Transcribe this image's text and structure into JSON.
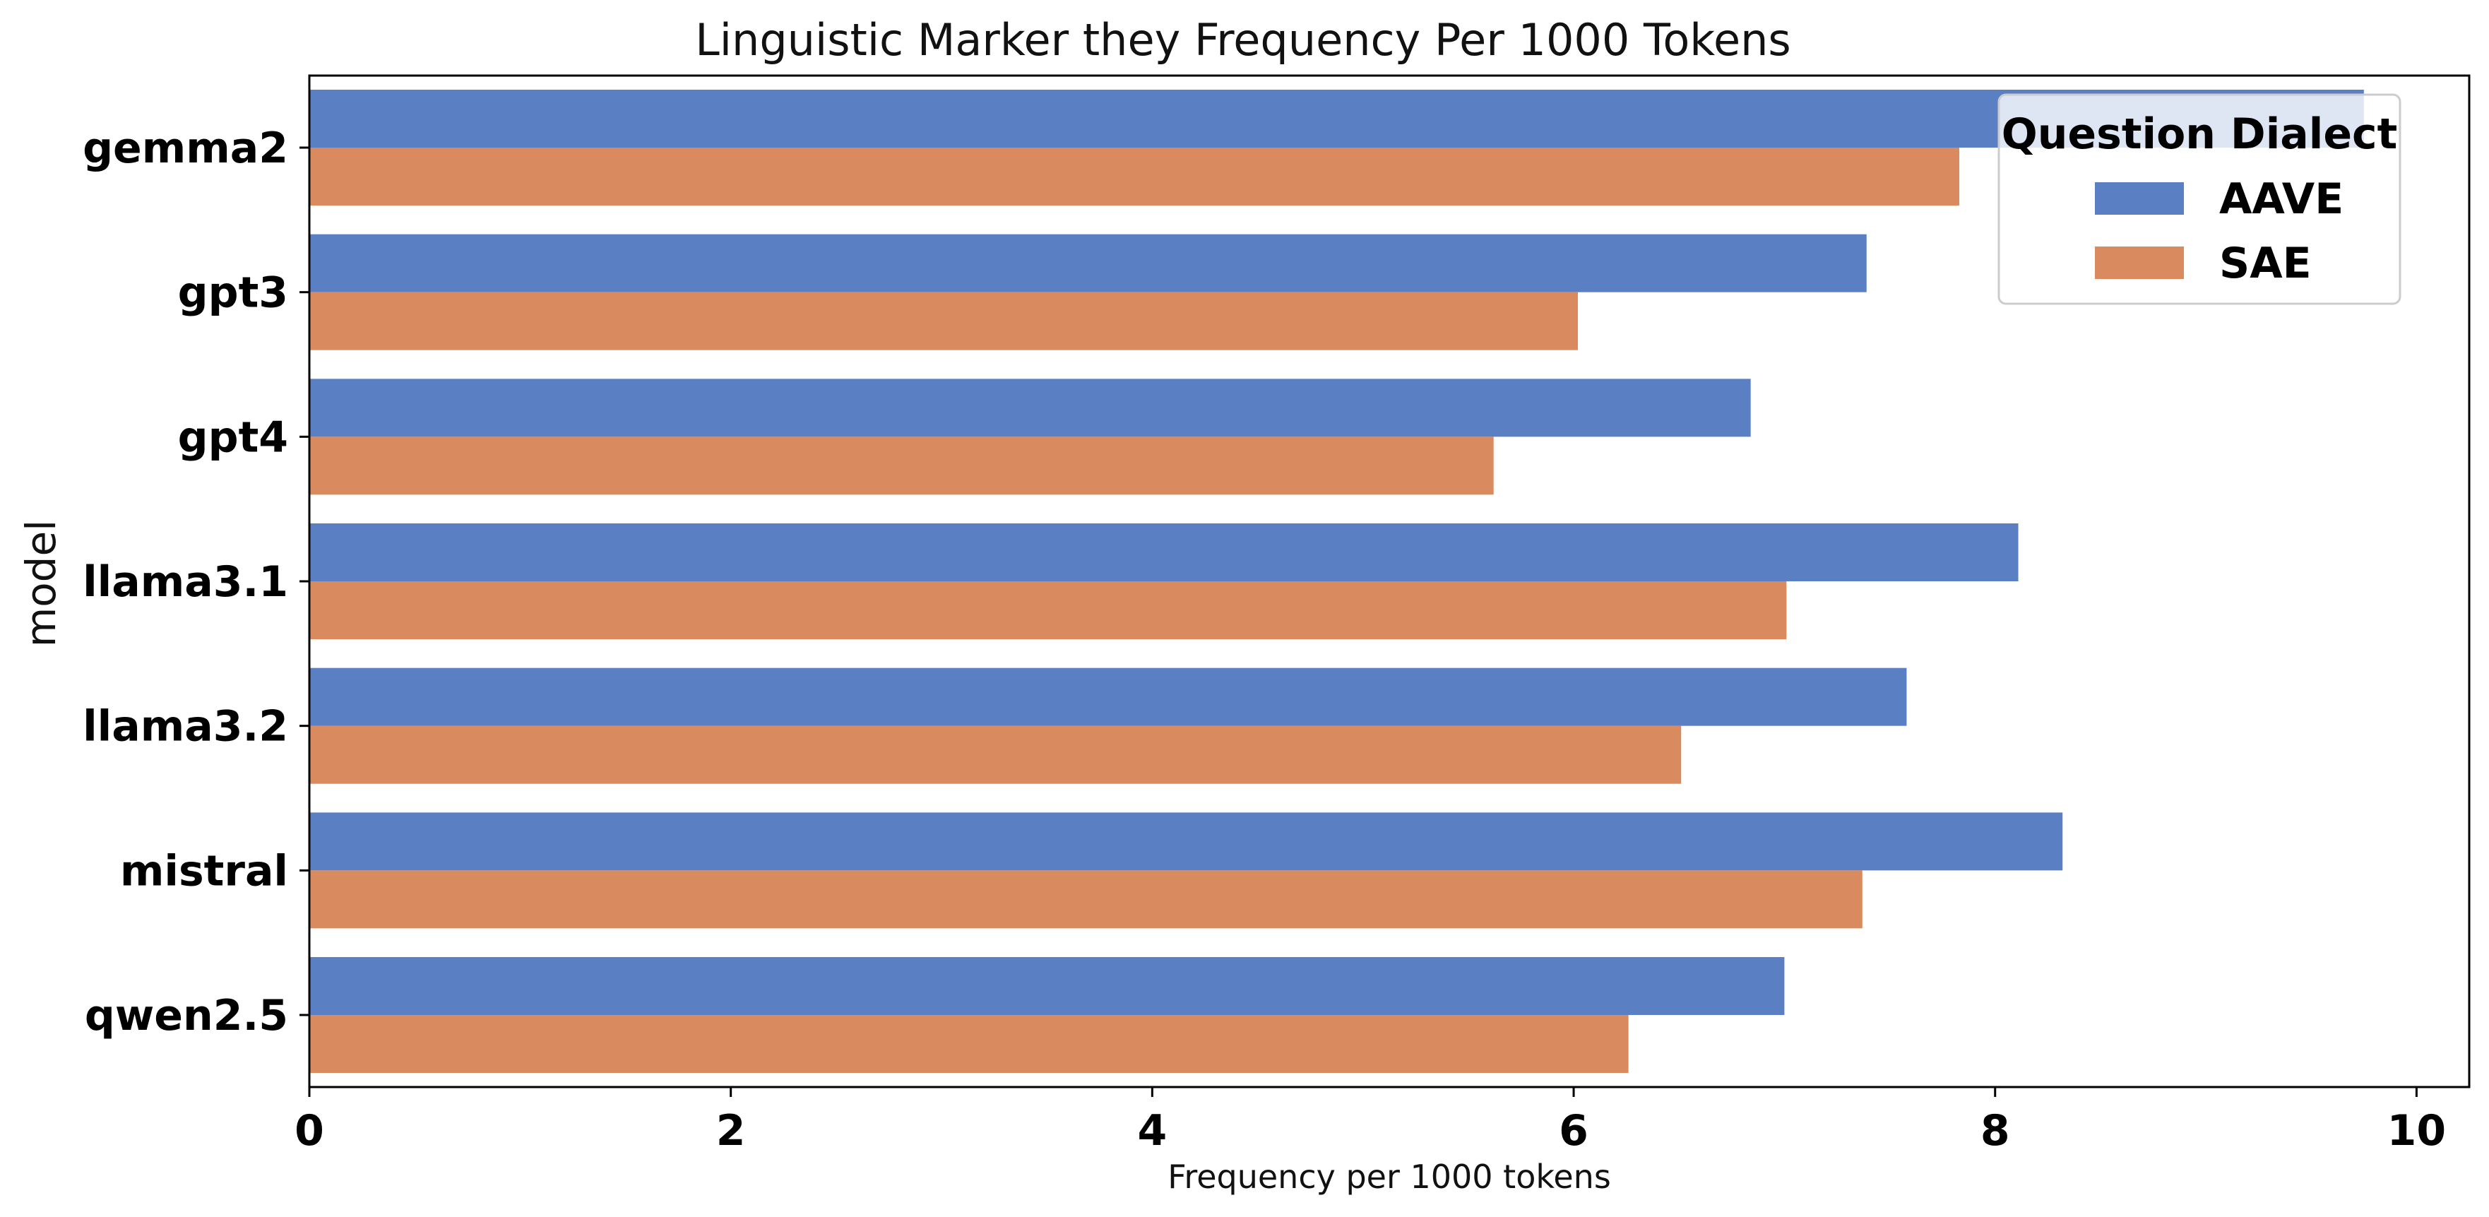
{
  "chart_data": {
    "type": "bar",
    "orientation": "horizontal",
    "title": "Linguistic Marker they Frequency Per 1000 Tokens",
    "xlabel": "Frequency per 1000 tokens",
    "ylabel": "model",
    "categories": [
      "gemma2",
      "gpt3",
      "gpt4",
      "llama3.1",
      "llama3.2",
      "mistral",
      "qwen2.5"
    ],
    "series": [
      {
        "name": "AAVE",
        "color": "#5a7fc2",
        "values": [
          9.75,
          7.39,
          6.84,
          8.11,
          7.58,
          8.32,
          7.0
        ]
      },
      {
        "name": "SAE",
        "color": "#d98a5e",
        "values": [
          7.83,
          6.02,
          5.62,
          7.01,
          6.51,
          7.37,
          6.26
        ]
      }
    ],
    "xlim": [
      0,
      10.25
    ],
    "xticks": [
      0,
      2,
      4,
      6,
      8,
      10
    ],
    "legend": {
      "title": "Question Dialect",
      "placement": "top-right"
    },
    "grid": false
  }
}
